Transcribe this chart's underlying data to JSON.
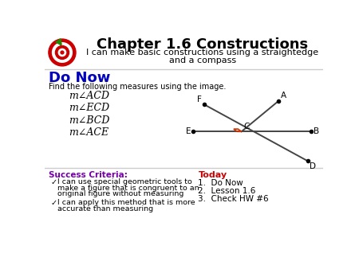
{
  "title_line1": "Chapter 1.6 Constructions",
  "title_line2": "I can make basic constructions using a straightedge\nand a compass",
  "do_now_label": "Do Now",
  "do_now_subtitle": "Find the following measures using the image.",
  "angle_items": [
    "m∠ACD",
    "m∠ECD",
    "m∠BCD",
    "m∠ACE"
  ],
  "success_title": "Success Criteria:",
  "success_items": [
    "I can use special geometric tools to\nmake a figure that is congruent to an\noriginal figure without measuring",
    "I can apply this method that is\nmore accurate than measuring"
  ],
  "today_title": "Today",
  "today_items": [
    "Do Now",
    "Lesson 1.6",
    "Check HW #6"
  ],
  "bg_color": "#ffffff",
  "title_color": "#000000",
  "do_now_color": "#0000bb",
  "success_title_color": "#7700aa",
  "today_title_color": "#cc0000",
  "body_color": "#000000",
  "line_color": "#444444",
  "sep_color": "#cccccc",
  "right_angle_color": "#cc3300"
}
